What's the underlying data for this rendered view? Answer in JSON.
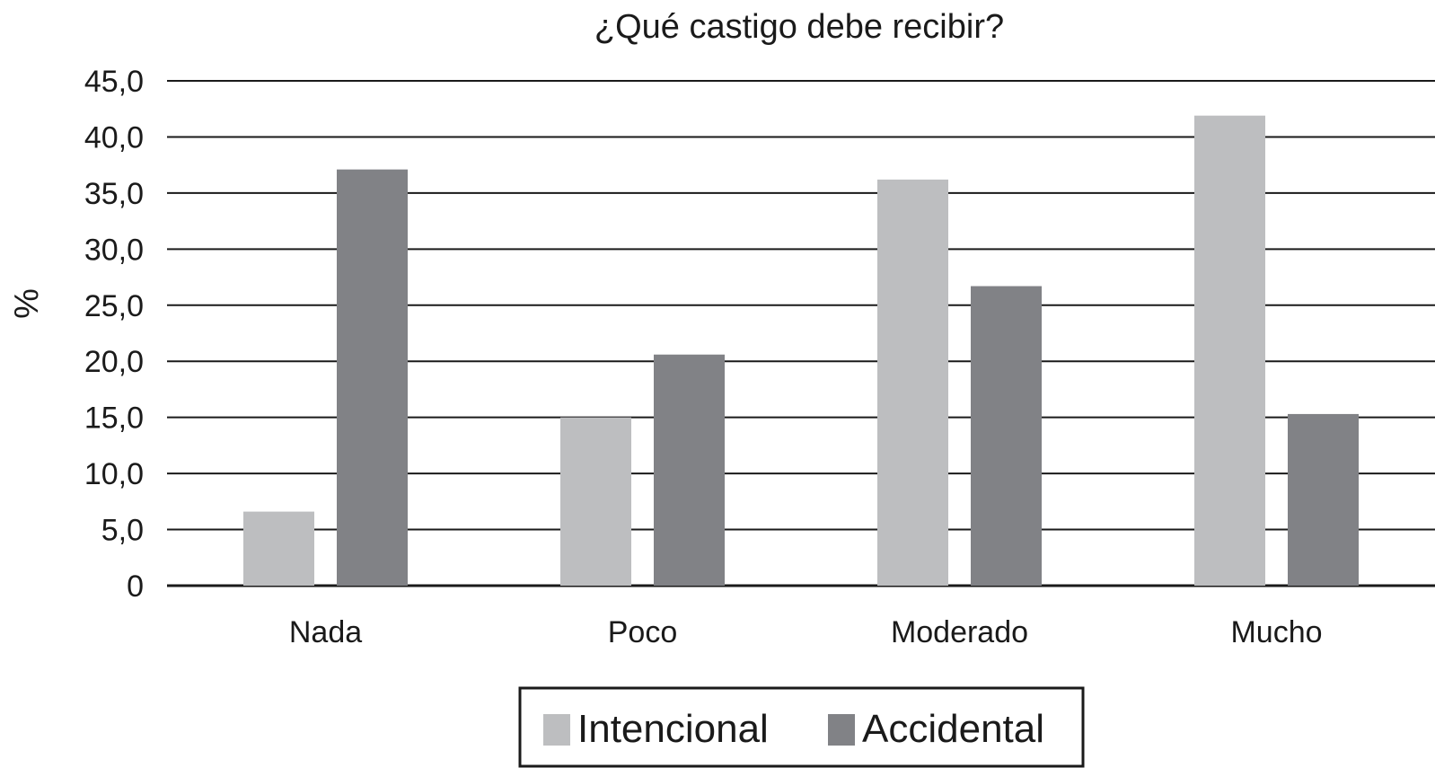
{
  "chart_data": {
    "type": "bar",
    "title": "¿Qué castigo debe recibir?",
    "xlabel": "",
    "ylabel": "%",
    "ylim": [
      0,
      45
    ],
    "yticks": [
      0,
      5,
      10,
      15,
      20,
      25,
      30,
      35,
      40,
      45
    ],
    "ytick_labels": [
      "0",
      "5,0",
      "10,0",
      "15,0",
      "20,0",
      "25,0",
      "30,0",
      "35,0",
      "40,0",
      "45,0"
    ],
    "grid": true,
    "legend_position": "bottom",
    "categories": [
      "Nada",
      "Poco",
      "Moderado",
      "Mucho"
    ],
    "series": [
      {
        "name": "Intencional",
        "color": "#bdbec0",
        "values": [
          6.6,
          15.0,
          36.2,
          41.9
        ]
      },
      {
        "name": "Accidental",
        "color": "#818286",
        "values": [
          37.1,
          20.6,
          26.7,
          15.3
        ]
      }
    ]
  }
}
